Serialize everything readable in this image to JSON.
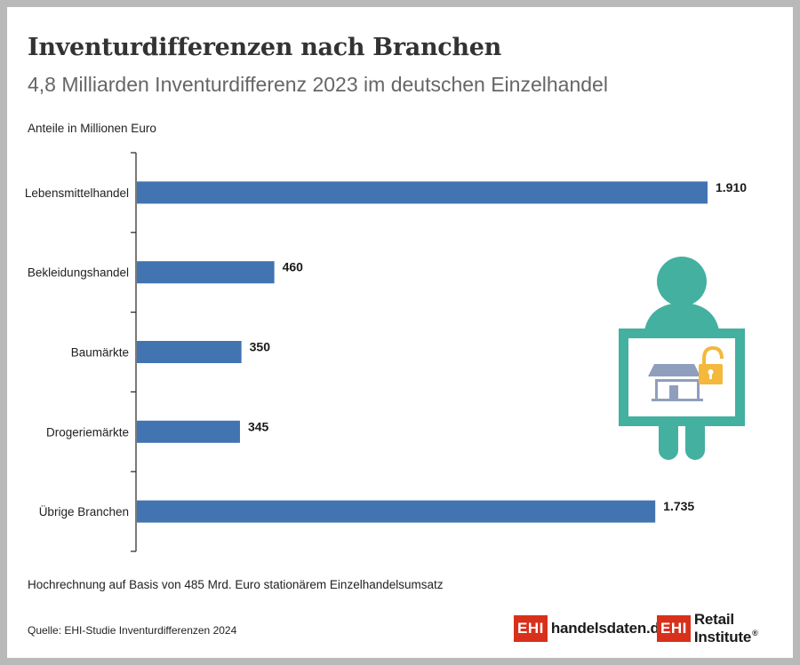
{
  "header": {
    "title": "Inventurdifferenzen nach Branchen",
    "subtitle": "4,8 Milliarden Inventurdifferenz 2023 im deutschen Einzelhandel",
    "units_label": "Anteile in Millionen Euro"
  },
  "footer": {
    "footnote": "Hochrechnung auf Basis von 485 Mrd. Euro stationärem Einzelhandelsumsatz",
    "source": "Quelle: EHI-Studie Inventurdifferenzen 2024",
    "logo1_box": "EHI",
    "logo1_text": "handelsdaten.de",
    "logo2_box": "EHI",
    "logo2_text": "Retail Institute",
    "logo2_reg": "®"
  },
  "colors": {
    "bar": "#4174b1",
    "illustration_teal": "#43b0a0",
    "lock_yellow": "#f3b83c",
    "shop_gray": "#8f9ebd"
  },
  "illustration": {
    "name": "person-holding-shop-lock-sign"
  },
  "chart_data": {
    "type": "bar",
    "orientation": "horizontal",
    "categories": [
      "Lebensmittelhandel",
      "Bekleidungshandel",
      "Baumärkte",
      "Drogeriemärkte",
      "Übrige Branchen"
    ],
    "values": [
      1910,
      460,
      350,
      345,
      1735
    ],
    "value_labels": [
      "1.910",
      "460",
      "350",
      "345",
      "1.735"
    ],
    "title": "Inventurdifferenzen nach Branchen",
    "xlabel": "",
    "ylabel": "",
    "unit": "Anteile in Millionen Euro",
    "xlim": [
      0,
      1910
    ],
    "grid": false,
    "legend": "none"
  }
}
